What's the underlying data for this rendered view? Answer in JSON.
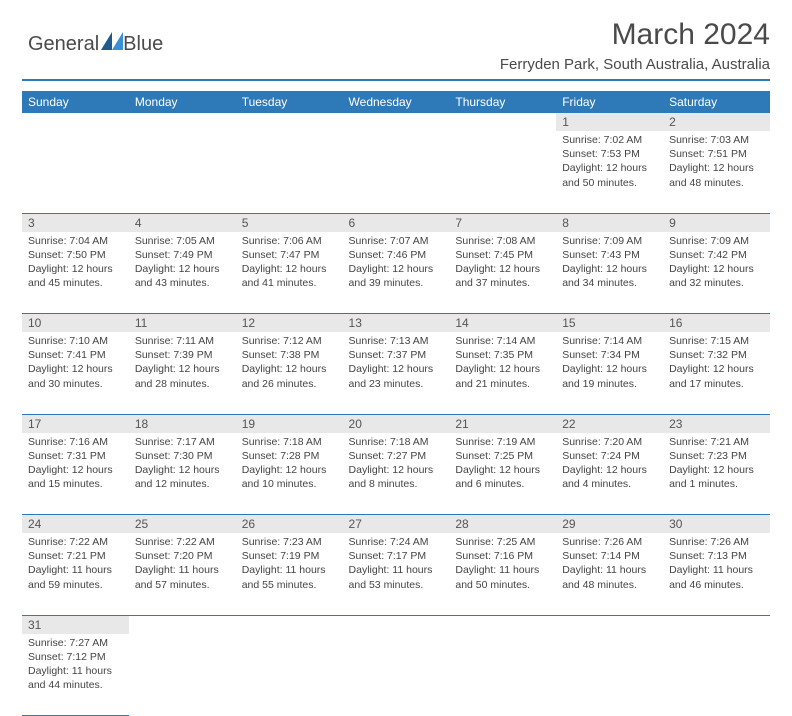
{
  "logo": {
    "text1": "General",
    "text2": "Blue",
    "accent_color": "#2e7ab8"
  },
  "header": {
    "title": "March 2024",
    "subtitle": "Ferryden Park, South Australia, Australia"
  },
  "day_names": [
    "Sunday",
    "Monday",
    "Tuesday",
    "Wednesday",
    "Thursday",
    "Friday",
    "Saturday"
  ],
  "colors": {
    "header_bg": "#2e7ab8",
    "header_text": "#ffffff",
    "daynum_bg": "#e8e8e8",
    "border": "#2e7ab8",
    "text": "#444444"
  },
  "weeks": [
    [
      null,
      null,
      null,
      null,
      null,
      {
        "n": "1",
        "sr": "7:02 AM",
        "ss": "7:53 PM",
        "dh": "12",
        "dm": "50"
      },
      {
        "n": "2",
        "sr": "7:03 AM",
        "ss": "7:51 PM",
        "dh": "12",
        "dm": "48"
      }
    ],
    [
      {
        "n": "3",
        "sr": "7:04 AM",
        "ss": "7:50 PM",
        "dh": "12",
        "dm": "45"
      },
      {
        "n": "4",
        "sr": "7:05 AM",
        "ss": "7:49 PM",
        "dh": "12",
        "dm": "43"
      },
      {
        "n": "5",
        "sr": "7:06 AM",
        "ss": "7:47 PM",
        "dh": "12",
        "dm": "41"
      },
      {
        "n": "6",
        "sr": "7:07 AM",
        "ss": "7:46 PM",
        "dh": "12",
        "dm": "39"
      },
      {
        "n": "7",
        "sr": "7:08 AM",
        "ss": "7:45 PM",
        "dh": "12",
        "dm": "37"
      },
      {
        "n": "8",
        "sr": "7:09 AM",
        "ss": "7:43 PM",
        "dh": "12",
        "dm": "34"
      },
      {
        "n": "9",
        "sr": "7:09 AM",
        "ss": "7:42 PM",
        "dh": "12",
        "dm": "32"
      }
    ],
    [
      {
        "n": "10",
        "sr": "7:10 AM",
        "ss": "7:41 PM",
        "dh": "12",
        "dm": "30"
      },
      {
        "n": "11",
        "sr": "7:11 AM",
        "ss": "7:39 PM",
        "dh": "12",
        "dm": "28"
      },
      {
        "n": "12",
        "sr": "7:12 AM",
        "ss": "7:38 PM",
        "dh": "12",
        "dm": "26"
      },
      {
        "n": "13",
        "sr": "7:13 AM",
        "ss": "7:37 PM",
        "dh": "12",
        "dm": "23"
      },
      {
        "n": "14",
        "sr": "7:14 AM",
        "ss": "7:35 PM",
        "dh": "12",
        "dm": "21"
      },
      {
        "n": "15",
        "sr": "7:14 AM",
        "ss": "7:34 PM",
        "dh": "12",
        "dm": "19"
      },
      {
        "n": "16",
        "sr": "7:15 AM",
        "ss": "7:32 PM",
        "dh": "12",
        "dm": "17"
      }
    ],
    [
      {
        "n": "17",
        "sr": "7:16 AM",
        "ss": "7:31 PM",
        "dh": "12",
        "dm": "15"
      },
      {
        "n": "18",
        "sr": "7:17 AM",
        "ss": "7:30 PM",
        "dh": "12",
        "dm": "12"
      },
      {
        "n": "19",
        "sr": "7:18 AM",
        "ss": "7:28 PM",
        "dh": "12",
        "dm": "10"
      },
      {
        "n": "20",
        "sr": "7:18 AM",
        "ss": "7:27 PM",
        "dh": "12",
        "dm": "8"
      },
      {
        "n": "21",
        "sr": "7:19 AM",
        "ss": "7:25 PM",
        "dh": "12",
        "dm": "6"
      },
      {
        "n": "22",
        "sr": "7:20 AM",
        "ss": "7:24 PM",
        "dh": "12",
        "dm": "4"
      },
      {
        "n": "23",
        "sr": "7:21 AM",
        "ss": "7:23 PM",
        "dh": "12",
        "dm": "1"
      }
    ],
    [
      {
        "n": "24",
        "sr": "7:22 AM",
        "ss": "7:21 PM",
        "dh": "11",
        "dm": "59"
      },
      {
        "n": "25",
        "sr": "7:22 AM",
        "ss": "7:20 PM",
        "dh": "11",
        "dm": "57"
      },
      {
        "n": "26",
        "sr": "7:23 AM",
        "ss": "7:19 PM",
        "dh": "11",
        "dm": "55"
      },
      {
        "n": "27",
        "sr": "7:24 AM",
        "ss": "7:17 PM",
        "dh": "11",
        "dm": "53"
      },
      {
        "n": "28",
        "sr": "7:25 AM",
        "ss": "7:16 PM",
        "dh": "11",
        "dm": "50"
      },
      {
        "n": "29",
        "sr": "7:26 AM",
        "ss": "7:14 PM",
        "dh": "11",
        "dm": "48"
      },
      {
        "n": "30",
        "sr": "7:26 AM",
        "ss": "7:13 PM",
        "dh": "11",
        "dm": "46"
      }
    ],
    [
      {
        "n": "31",
        "sr": "7:27 AM",
        "ss": "7:12 PM",
        "dh": "11",
        "dm": "44"
      },
      null,
      null,
      null,
      null,
      null,
      null
    ]
  ],
  "labels": {
    "sunrise": "Sunrise:",
    "sunset": "Sunset:",
    "daylight": "Daylight:",
    "hours": "hours",
    "and": "and",
    "minutes": "minutes."
  }
}
